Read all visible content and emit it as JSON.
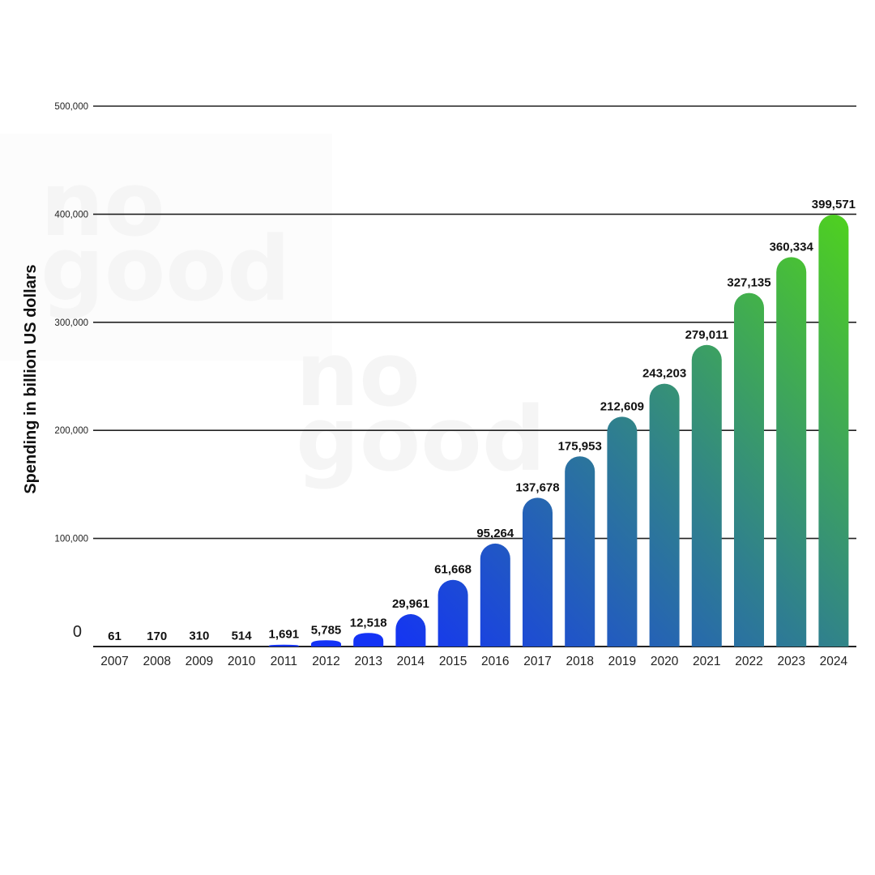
{
  "chart_data": {
    "type": "bar",
    "title": "",
    "xlabel": "",
    "ylabel": "Spending in billion US dollars",
    "ylim": [
      0,
      500000
    ],
    "yticks": [
      0,
      100000,
      200000,
      300000,
      400000,
      500000
    ],
    "ytick_labels": [
      "0",
      "100,000",
      "200,000",
      "300,000",
      "400,000",
      "500,000"
    ],
    "grid": true,
    "legend": null,
    "categories": [
      "2007",
      "2008",
      "2009",
      "2010",
      "2011",
      "2012",
      "2013",
      "2014",
      "2015",
      "2016",
      "2017",
      "2018",
      "2019",
      "2020",
      "2021",
      "2022",
      "2023",
      "2024"
    ],
    "values": [
      61,
      170,
      310,
      514,
      1691,
      5785,
      12518,
      29961,
      61668,
      95264,
      137678,
      175953,
      212609,
      243203,
      279011,
      327135,
      360334,
      399571
    ],
    "value_labels": [
      "61",
      "170",
      "310",
      "514",
      "1,691",
      "5,785",
      "12,518",
      "29,961",
      "61,668",
      "95,264",
      "137,678",
      "175,953",
      "212,609",
      "243,203",
      "279,011",
      "327,135",
      "360,334",
      "399,571"
    ],
    "colors": {
      "gradient_start": "#1433f5",
      "gradient_mid": "#2f7f8f",
      "gradient_end": "#4fd11f",
      "grid": "#222222",
      "text": "#111111"
    }
  },
  "watermark": {
    "line1": "no",
    "line2": "good"
  }
}
